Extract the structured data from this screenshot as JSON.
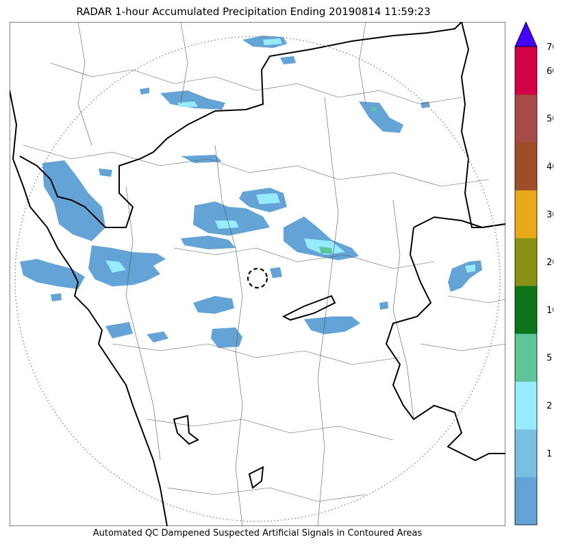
{
  "title": "RADAR 1-hour Accumulated Precipitation Ending 20190814 11:59:23",
  "footer_note": "Automated QC Dampened Suspected Artificial Signals in Contoured Areas",
  "colorbar": {
    "unit": "",
    "levels": [
      {
        "label": "",
        "color": "#64a3d6"
      },
      {
        "label": "1",
        "color": "#78bfe2"
      },
      {
        "label": "2",
        "color": "#96ecfd"
      },
      {
        "label": "5",
        "color": "#5ec49a"
      },
      {
        "label": "10",
        "color": "#0b7518"
      },
      {
        "label": "20",
        "color": "#899215"
      },
      {
        "label": "30",
        "color": "#e8a919"
      },
      {
        "label": "40",
        "color": "#9b4e28"
      },
      {
        "label": "50",
        "color": "#a64b45"
      },
      {
        "label": "60",
        "color": "#d40045"
      }
    ],
    "top_label": "70",
    "overflow_color": "#4400ff"
  },
  "map": {
    "range_ring_style": "dotted",
    "radar_marker": "dashed-circle",
    "state_boundary_color": "#000000",
    "district_boundary_color": "#555555"
  }
}
